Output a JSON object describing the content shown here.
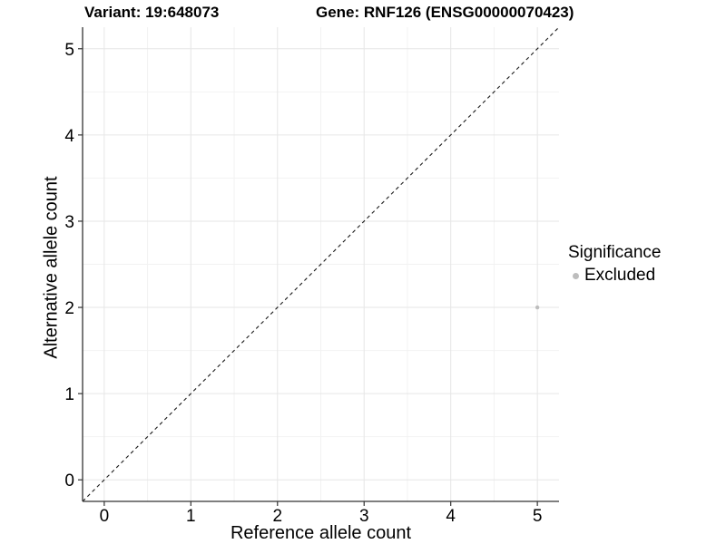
{
  "header": {
    "variant_title": "Variant: 19:648073",
    "gene_title": "Gene: RNF126 (ENSG00000070423)"
  },
  "chart_data": {
    "type": "scatter",
    "xlabel": "Reference allele count",
    "ylabel": "Alternative allele count",
    "xlim": [
      -0.25,
      5.25
    ],
    "ylim": [
      -0.25,
      5.25
    ],
    "xticks": [
      0,
      1,
      2,
      3,
      4,
      5
    ],
    "yticks": [
      0,
      1,
      2,
      3,
      4,
      5
    ],
    "grid": {
      "major": true,
      "minor": true
    },
    "points": [
      {
        "x": 5,
        "y": 2,
        "series": "Excluded",
        "color": "#bdbdbd",
        "radius": 2.2
      }
    ],
    "reference_line": {
      "type": "identity",
      "style": "dashed",
      "from": [
        -0.25,
        -0.25
      ],
      "to": [
        5.25,
        5.25
      ],
      "color": "#1a1a1a"
    },
    "legend": {
      "title": "Significance",
      "position": "right",
      "entries": [
        {
          "label": "Excluded",
          "color": "#bdbdbd"
        }
      ]
    }
  },
  "colors": {
    "background": "#ffffff",
    "panel_background": "#ffffff",
    "grid_major": "#e6e6e6",
    "grid_minor": "#f2f2f2",
    "axis_line": "#333333",
    "tick_mark": "#333333",
    "tick_text": "#000000"
  }
}
